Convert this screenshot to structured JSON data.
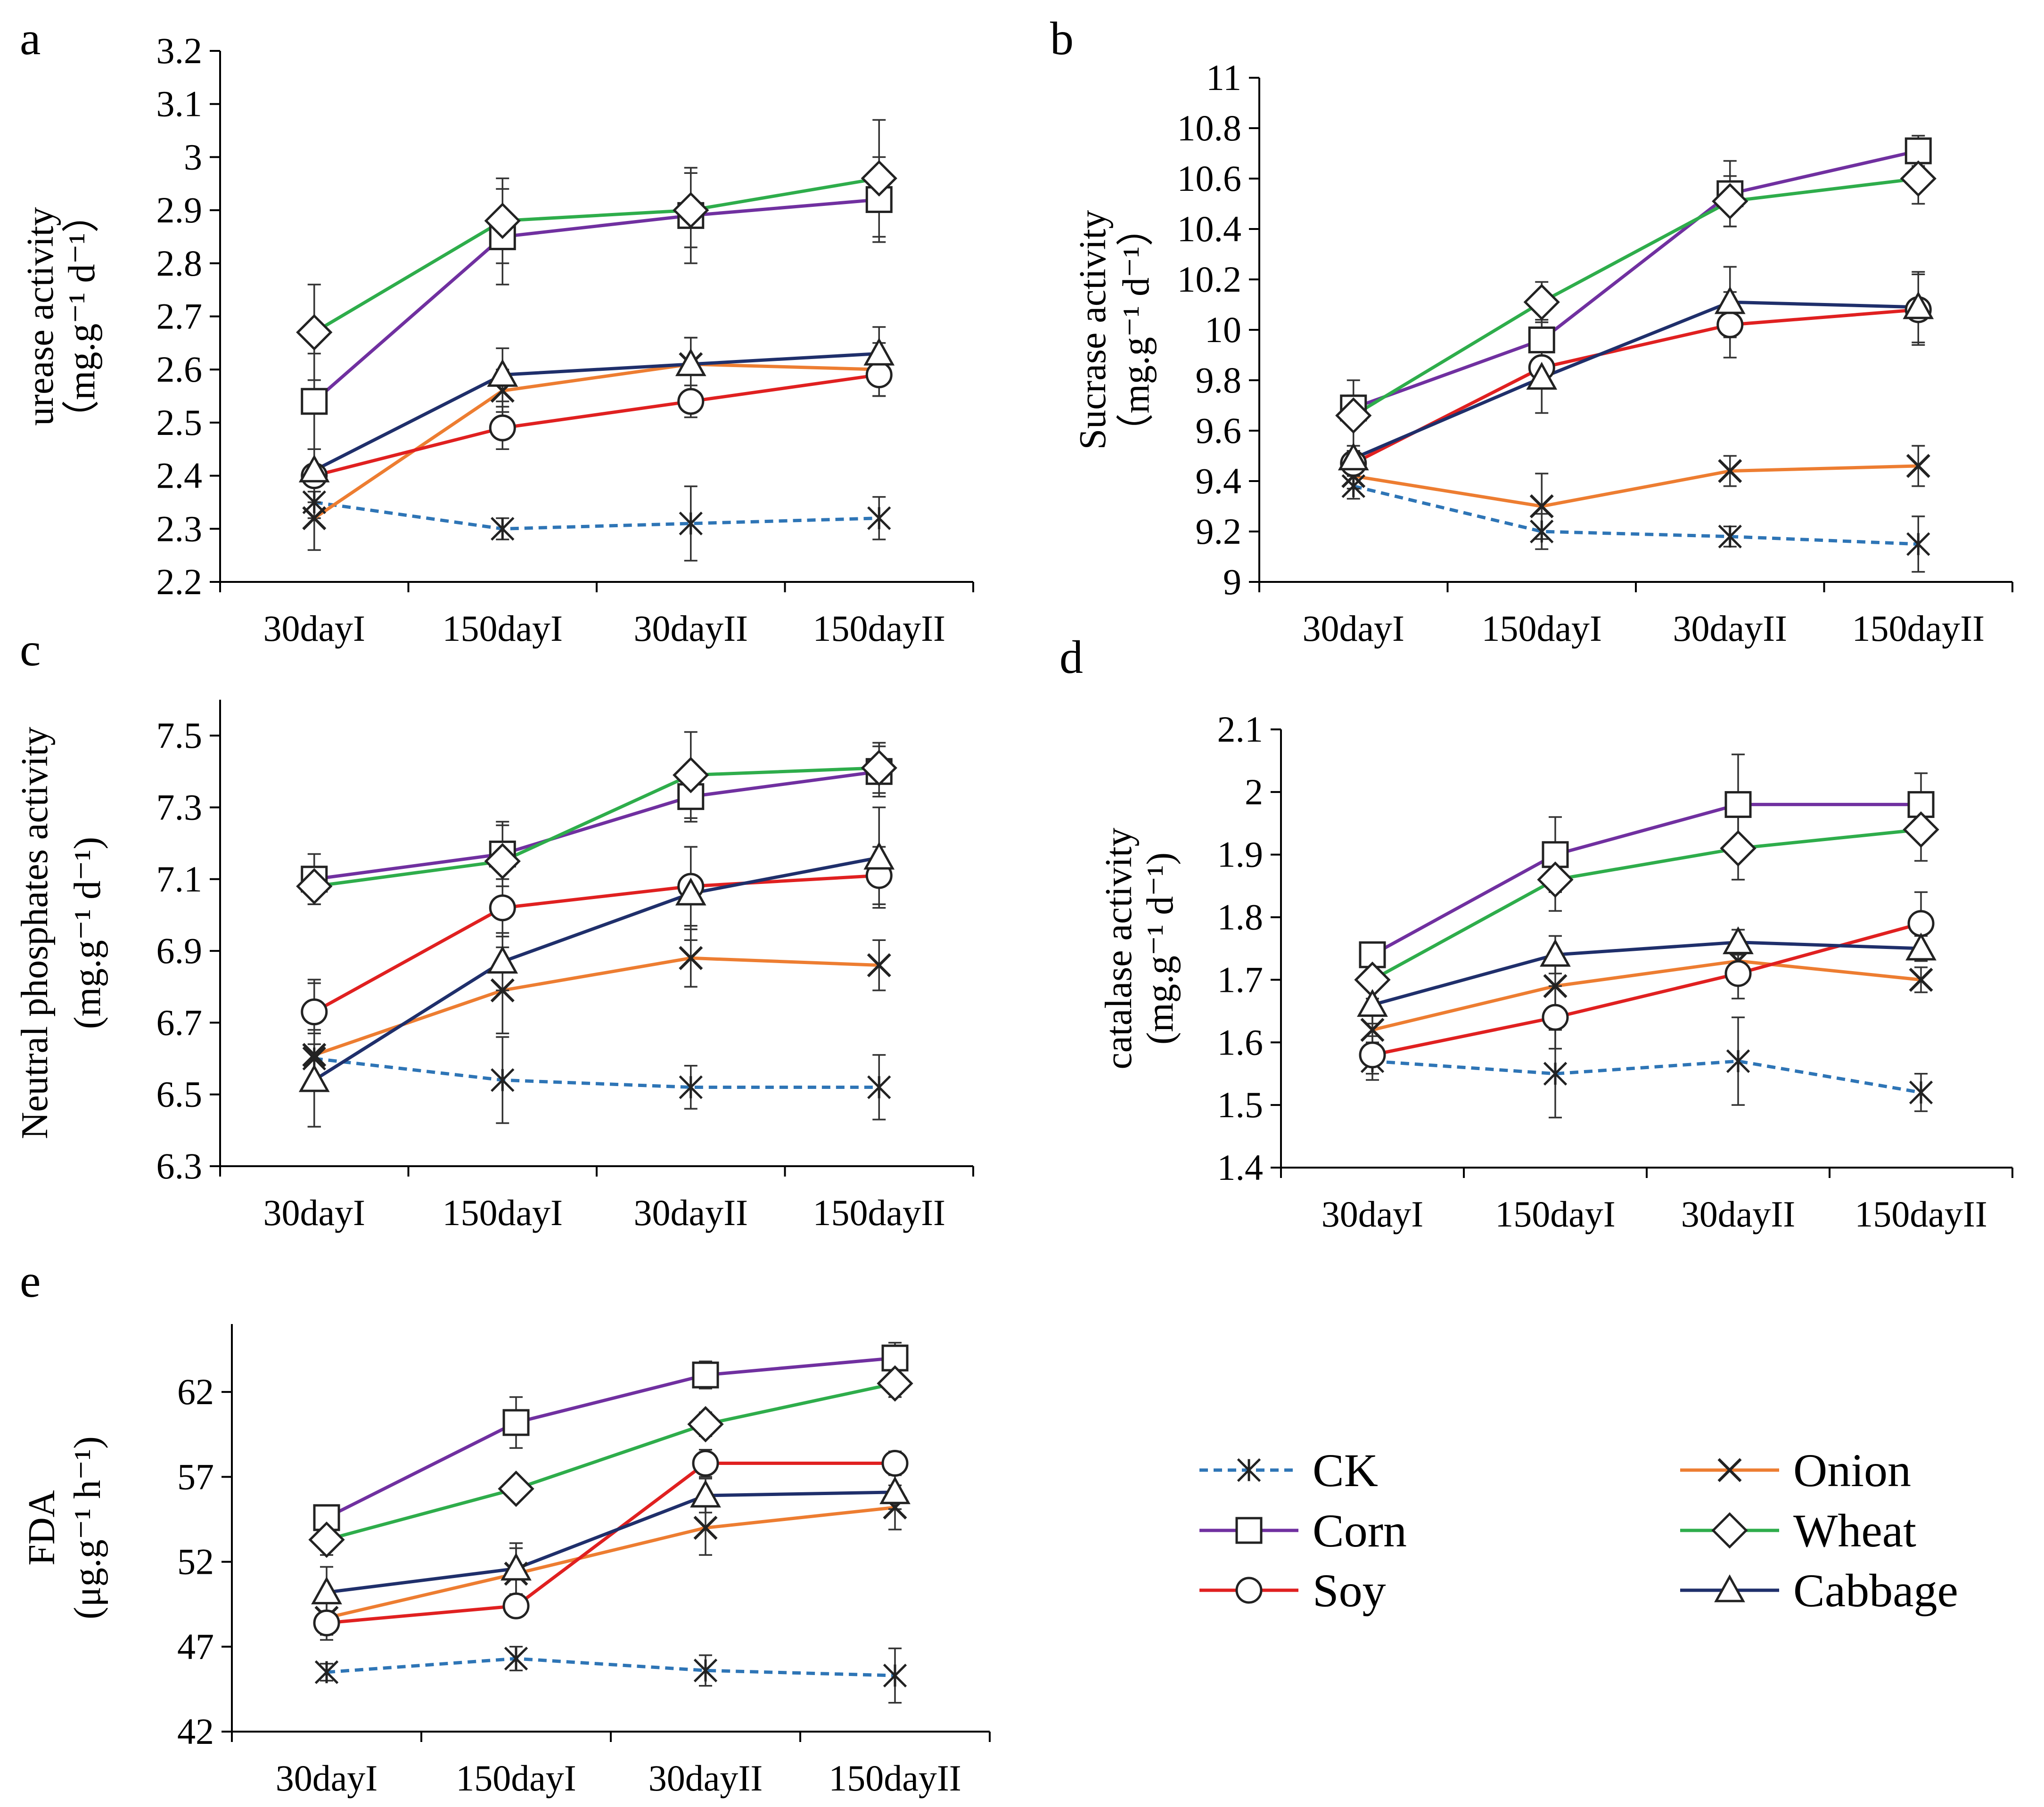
{
  "chart_data": [
    {
      "panel": "a",
      "type": "line",
      "ylabel_line1": "urease activity",
      "ylabel_line2": "（mg.g⁻¹ d⁻¹）",
      "ylim": [
        2.2,
        3.2
      ],
      "yticks": [
        "2.2",
        "2.3",
        "2.4",
        "2.5",
        "2.6",
        "2.7",
        "2.8",
        "2.9",
        "3",
        "3.1",
        "3.2"
      ],
      "categories": [
        "30dayI",
        "150dayI",
        "30dayII",
        "150dayII"
      ],
      "series": [
        {
          "name": "CK",
          "values": [
            2.35,
            2.3,
            2.31,
            2.32
          ],
          "errors": [
            0.03,
            0.02,
            0.07,
            0.04
          ]
        },
        {
          "name": "Onion",
          "values": [
            2.32,
            2.56,
            2.61,
            2.6
          ],
          "errors": [
            0.06,
            0.04,
            0.05,
            0.05
          ]
        },
        {
          "name": "Corn",
          "values": [
            2.54,
            2.85,
            2.89,
            2.92
          ],
          "errors": [
            0.09,
            0.09,
            0.09,
            0.08
          ]
        },
        {
          "name": "Wheat",
          "values": [
            2.67,
            2.88,
            2.9,
            2.96
          ],
          "errors": [
            0.09,
            0.08,
            0.07,
            0.11
          ]
        },
        {
          "name": "Soy",
          "values": [
            2.4,
            2.49,
            2.54,
            2.59
          ],
          "errors": [
            0.05,
            0.04,
            0.03,
            0.04
          ]
        },
        {
          "name": "Cabbage",
          "values": [
            2.41,
            2.59,
            2.61,
            2.63
          ],
          "errors": [
            0.04,
            0.05,
            0.05,
            0.05
          ]
        }
      ]
    },
    {
      "panel": "b",
      "type": "line",
      "ylabel_line1": "Sucrase activity",
      "ylabel_line2": "（mg.g⁻¹ d⁻¹）",
      "ylim": [
        9,
        11
      ],
      "yticks": [
        "9",
        "9.2",
        "9.4",
        "9.6",
        "9.8",
        "10",
        "10.2",
        "10.4",
        "10.6",
        "10.8",
        "11"
      ],
      "categories": [
        "30dayI",
        "150dayI",
        "30dayII",
        "150dayII"
      ],
      "series": [
        {
          "name": "CK",
          "values": [
            9.38,
            9.2,
            9.18,
            9.15
          ],
          "errors": [
            0.05,
            0.07,
            0.04,
            0.11
          ]
        },
        {
          "name": "Onion",
          "values": [
            9.42,
            9.3,
            9.44,
            9.46
          ],
          "errors": [
            0.05,
            0.13,
            0.06,
            0.08
          ]
        },
        {
          "name": "Corn",
          "values": [
            9.69,
            9.96,
            10.54,
            10.71
          ],
          "errors": [
            0.05,
            0.08,
            0.13,
            0.06
          ]
        },
        {
          "name": "Wheat",
          "values": [
            9.66,
            10.11,
            10.51,
            10.6
          ],
          "errors": [
            0.14,
            0.08,
            0.1,
            0.1
          ]
        },
        {
          "name": "Soy",
          "values": [
            9.47,
            9.85,
            10.02,
            10.08
          ],
          "errors": [
            0.05,
            0.07,
            0.13,
            0.14
          ]
        },
        {
          "name": "Cabbage",
          "values": [
            9.49,
            9.81,
            10.11,
            10.09
          ],
          "errors": [
            0.05,
            0.14,
            0.14,
            0.14
          ]
        }
      ]
    },
    {
      "panel": "c",
      "type": "line",
      "ylabel_line1": "Neutral phosphates activity",
      "ylabel_line2": "(mg.g⁻¹ d⁻¹)",
      "ylim": [
        6.3,
        7.6
      ],
      "yticks": [
        "6.3",
        "6.5",
        "6.7",
        "6.9",
        "7.1",
        "7.3",
        "7.5"
      ],
      "categories": [
        "30dayI",
        "150dayI",
        "30dayII",
        "150dayII"
      ],
      "series": [
        {
          "name": "CK",
          "values": [
            6.6,
            6.54,
            6.52,
            6.52
          ],
          "errors": [
            0.08,
            0.12,
            0.06,
            0.09
          ]
        },
        {
          "name": "Onion",
          "values": [
            6.61,
            6.79,
            6.88,
            6.86
          ],
          "errors": [
            0.2,
            0.12,
            0.08,
            0.07
          ]
        },
        {
          "name": "Corn",
          "values": [
            7.1,
            7.17,
            7.33,
            7.4
          ],
          "errors": [
            0.07,
            0.09,
            0.07,
            0.07
          ]
        },
        {
          "name": "Wheat",
          "values": [
            7.08,
            7.15,
            7.39,
            7.41
          ],
          "errors": [
            0.05,
            0.1,
            0.12,
            0.07
          ]
        },
        {
          "name": "Soy",
          "values": [
            6.73,
            7.02,
            7.08,
            7.11
          ],
          "errors": [
            0.09,
            0.08,
            0.11,
            0.08
          ]
        },
        {
          "name": "Cabbage",
          "values": [
            6.54,
            6.87,
            7.06,
            7.16
          ],
          "errors": [
            0.13,
            0.08,
            0.13,
            0.14
          ]
        }
      ]
    },
    {
      "panel": "d",
      "type": "line",
      "ylabel_line1": "catalase activity",
      "ylabel_line2": "(mg.g⁻¹ d⁻¹)",
      "ylim": [
        1.4,
        2.1
      ],
      "yticks": [
        "1.4",
        "1.5",
        "1.6",
        "1.7",
        "1.8",
        "1.9",
        "2",
        "2.1"
      ],
      "categories": [
        "30dayI",
        "150dayI",
        "30dayII",
        "150dayII"
      ],
      "series": [
        {
          "name": "CK",
          "values": [
            1.57,
            1.55,
            1.57,
            1.52
          ],
          "errors": [
            0.03,
            0.07,
            0.07,
            0.03
          ]
        },
        {
          "name": "Onion",
          "values": [
            1.62,
            1.69,
            1.73,
            1.7
          ],
          "errors": [
            0.03,
            0.04,
            0.03,
            0.02
          ]
        },
        {
          "name": "Corn",
          "values": [
            1.74,
            1.9,
            1.98,
            1.98
          ],
          "errors": [
            0.02,
            0.06,
            0.08,
            0.05
          ]
        },
        {
          "name": "Wheat",
          "values": [
            1.7,
            1.86,
            1.91,
            1.94
          ],
          "errors": [
            0.03,
            0.05,
            0.05,
            0.05
          ]
        },
        {
          "name": "Soy",
          "values": [
            1.58,
            1.64,
            1.71,
            1.79
          ],
          "errors": [
            0.03,
            0.05,
            0.04,
            0.05
          ]
        },
        {
          "name": "Cabbage",
          "values": [
            1.66,
            1.74,
            1.76,
            1.75
          ],
          "errors": [
            0.03,
            0.03,
            0.02,
            0.02
          ]
        }
      ]
    },
    {
      "panel": "e",
      "type": "line",
      "ylabel_line1": "FDA",
      "ylabel_line2": "(μg.g⁻¹ h⁻¹)",
      "ylim": [
        42,
        66
      ],
      "yticks": [
        "42",
        "47",
        "52",
        "57",
        "62"
      ],
      "categories": [
        "30dayI",
        "150dayI",
        "30dayII",
        "150dayII"
      ],
      "series": [
        {
          "name": "CK",
          "values": [
            45.5,
            46.3,
            45.6,
            45.3
          ],
          "errors": [
            0.5,
            0.7,
            0.9,
            1.6
          ]
        },
        {
          "name": "Onion",
          "values": [
            48.7,
            51.3,
            54.0,
            55.2
          ],
          "errors": [
            1.3,
            1.5,
            1.6,
            1.3
          ]
        },
        {
          "name": "Corn",
          "values": [
            54.6,
            60.2,
            63.0,
            64.0
          ],
          "errors": [
            0.6,
            1.5,
            0.8,
            0.9
          ]
        },
        {
          "name": "Wheat",
          "values": [
            53.3,
            56.3,
            60.1,
            62.5
          ],
          "errors": [
            0.9,
            0.5,
            0.7,
            0.8
          ]
        },
        {
          "name": "Soy",
          "values": [
            48.4,
            49.4,
            57.8,
            57.8
          ],
          "errors": [
            0.7,
            0.6,
            0.8,
            0.7
          ]
        },
        {
          "name": "Cabbage",
          "values": [
            50.2,
            51.6,
            55.9,
            56.1
          ],
          "errors": [
            1.5,
            1.5,
            1.0,
            1.0
          ]
        }
      ]
    }
  ],
  "legend": [
    {
      "name": "CK",
      "color": "#2E75B6",
      "marker": "asterisk",
      "dashed": true
    },
    {
      "name": "Onion",
      "color": "#ED7D31",
      "marker": "x",
      "dashed": false
    },
    {
      "name": "Corn",
      "color": "#7030A0",
      "marker": "square",
      "dashed": false
    },
    {
      "name": "Wheat",
      "color": "#2EAD4B",
      "marker": "diamond",
      "dashed": false
    },
    {
      "name": "Soy",
      "color": "#E02020",
      "marker": "circle",
      "dashed": false
    },
    {
      "name": "Cabbage",
      "color": "#1F2F6B",
      "marker": "triangle",
      "dashed": false
    }
  ]
}
